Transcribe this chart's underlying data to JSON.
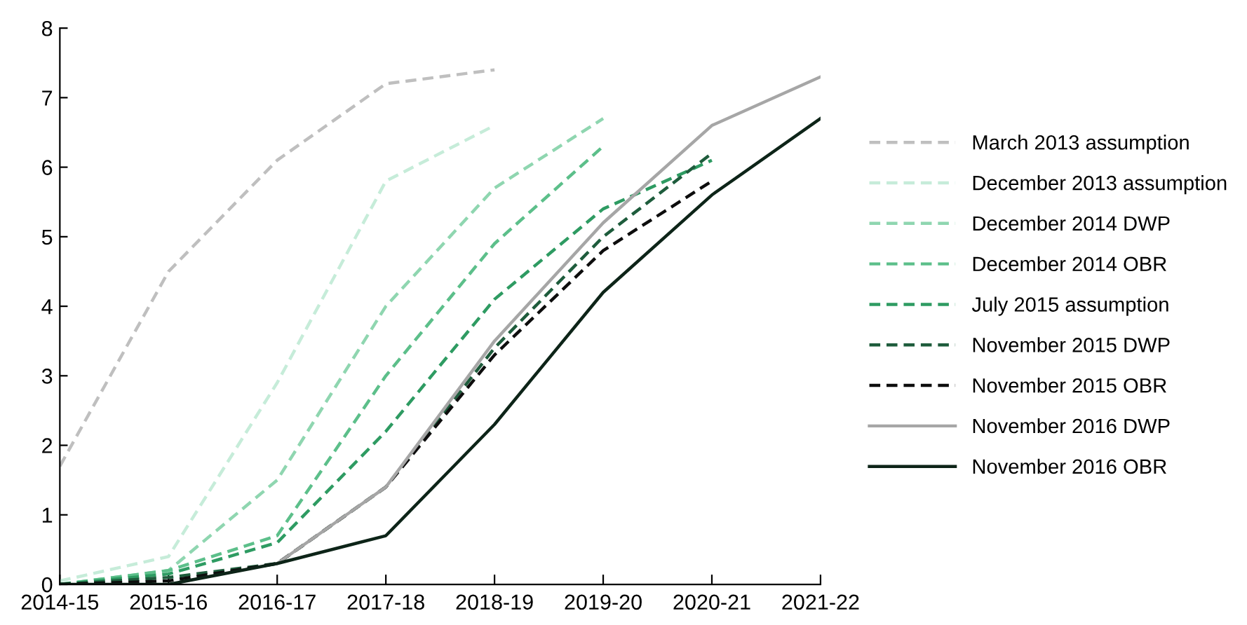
{
  "chart_data": {
    "type": "line",
    "categories": [
      "2014-15",
      "2015-16",
      "2016-17",
      "2017-18",
      "2018-19",
      "2019-20",
      "2020-21",
      "2021-22"
    ],
    "ylim": [
      0,
      8
    ],
    "yticks": [
      0,
      1,
      2,
      3,
      4,
      5,
      6,
      7,
      8
    ],
    "grid": false,
    "legend": "right",
    "marker": "none",
    "series": [
      {
        "name": "March 2013 assumption",
        "color": "#bfbfbf",
        "line_style": "dashed",
        "values": [
          1.7,
          4.5,
          6.1,
          7.2,
          7.4,
          null,
          null,
          null
        ]
      },
      {
        "name": "December 2013 assumption",
        "color": "#c6ecd9",
        "line_style": "dashed",
        "values": [
          0.05,
          0.4,
          2.9,
          5.8,
          6.6,
          null,
          null,
          null
        ]
      },
      {
        "name": "December 2014 DWP",
        "color": "#8fd6b0",
        "line_style": "dashed",
        "values": [
          0,
          0.2,
          1.5,
          4.0,
          5.7,
          6.7,
          null,
          null
        ]
      },
      {
        "name": "December 2014 OBR",
        "color": "#5cbf8a",
        "line_style": "dashed",
        "values": [
          0,
          0.2,
          0.7,
          3.0,
          4.9,
          6.3,
          null,
          null
        ]
      },
      {
        "name": "July 2015 assumption",
        "color": "#2e9b62",
        "line_style": "dashed",
        "values": [
          0,
          0.15,
          0.6,
          2.2,
          4.1,
          5.4,
          6.1,
          null
        ]
      },
      {
        "name": "November 2015 DWP",
        "color": "#1e5c3c",
        "line_style": "dashed",
        "values": [
          0,
          0.1,
          0.3,
          1.4,
          3.4,
          5.0,
          6.2,
          null
        ]
      },
      {
        "name": "November 2015 OBR",
        "color": "#0d0d0d",
        "line_style": "dashed",
        "values": [
          0,
          0.05,
          0.3,
          1.4,
          3.3,
          4.8,
          5.8,
          null
        ]
      },
      {
        "name": "November 2016 DWP",
        "color": "#a6a6a6",
        "line_style": "solid",
        "values": [
          null,
          null,
          0.3,
          1.4,
          3.5,
          5.2,
          6.6,
          7.3
        ]
      },
      {
        "name": "November 2016 OBR",
        "color": "#0d2418",
        "line_style": "solid",
        "values": [
          0,
          0,
          0.3,
          0.7,
          2.3,
          4.2,
          5.6,
          6.7
        ]
      }
    ]
  }
}
